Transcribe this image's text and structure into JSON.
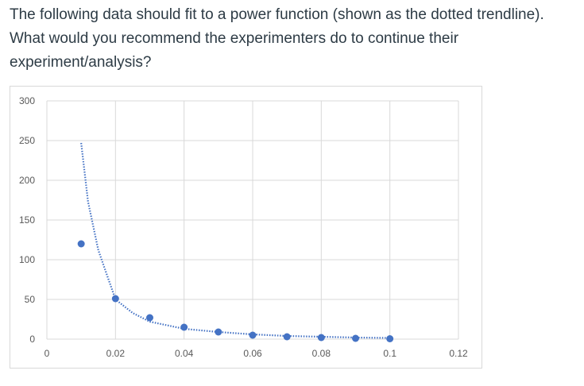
{
  "question": {
    "text": "The following data should fit to a power function (shown as the dotted trendline). What would you recommend the experimenters do to continue their experiment/analysis?"
  },
  "colors": {
    "marker": "#4472c4",
    "trendline": "#4472c4",
    "gridline": "#d9d9d9"
  },
  "chart_data": {
    "type": "scatter",
    "title": "",
    "xlabel": "",
    "ylabel": "",
    "xlim": [
      0,
      0.12
    ],
    "ylim": [
      0,
      300
    ],
    "x_ticks": [
      0,
      0.02,
      0.04,
      0.06,
      0.08,
      0.1,
      0.12
    ],
    "x_tick_labels": [
      "0",
      "0.02",
      "0.04",
      "0.06",
      "0.08",
      "0.1",
      "0.12"
    ],
    "y_ticks": [
      0,
      50,
      100,
      150,
      200,
      250,
      300
    ],
    "y_tick_labels": [
      "0",
      "50",
      "100",
      "150",
      "200",
      "250",
      "300"
    ],
    "grid": true,
    "legend": "none",
    "series": [
      {
        "x": [
          0.01,
          0.02,
          0.03,
          0.04,
          0.05,
          0.06,
          0.07,
          0.08,
          0.09,
          0.1
        ],
        "y": [
          120,
          51,
          27,
          15,
          9,
          5,
          3,
          2,
          1,
          0.5
        ]
      }
    ],
    "trendline": {
      "kind": "power",
      "style": "dotted",
      "x_range": [
        0.01,
        0.1
      ],
      "points": [
        [
          0.01,
          247
        ],
        [
          0.012,
          173
        ],
        [
          0.015,
          112
        ],
        [
          0.02,
          50
        ],
        [
          0.025,
          33
        ],
        [
          0.03,
          22
        ],
        [
          0.04,
          13
        ],
        [
          0.05,
          9
        ],
        [
          0.06,
          6
        ],
        [
          0.07,
          4
        ],
        [
          0.08,
          3
        ],
        [
          0.09,
          2
        ],
        [
          0.1,
          1.5
        ]
      ]
    }
  }
}
